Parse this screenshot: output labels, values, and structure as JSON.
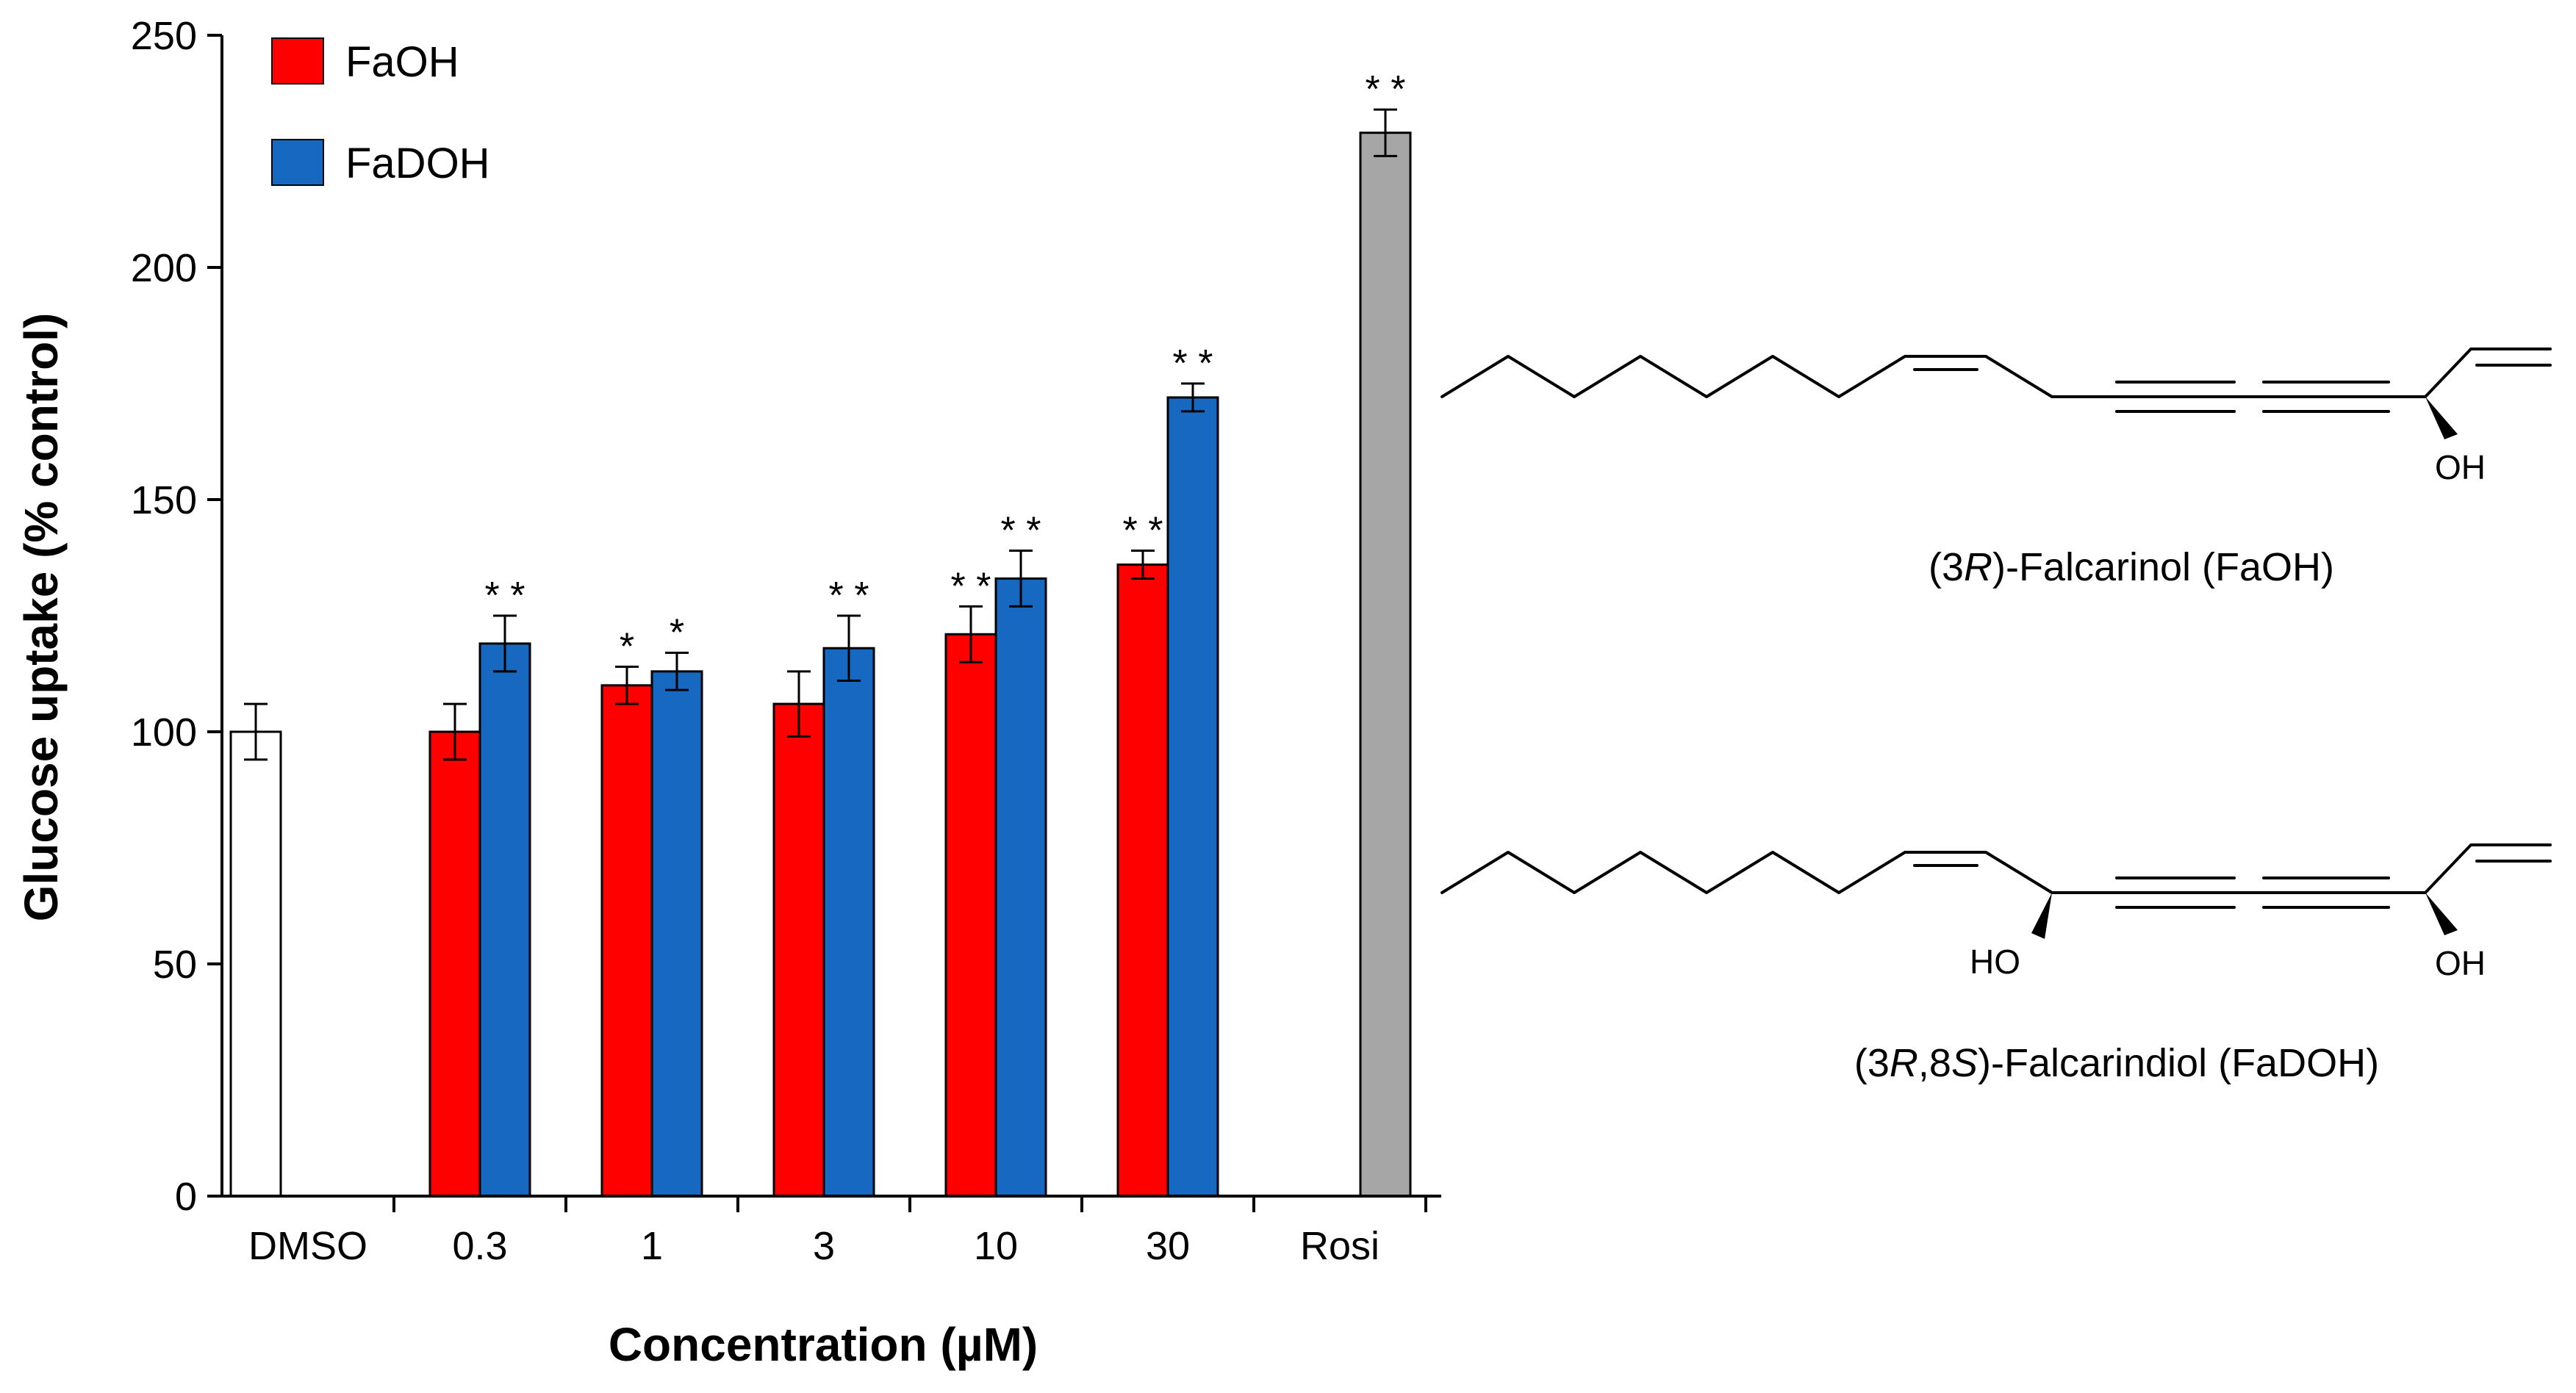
{
  "chart_data": {
    "type": "bar",
    "title": "",
    "xlabel": "Concentration (µM)",
    "ylabel": "Glucose uptake (% control)",
    "ylim": [
      0,
      250
    ],
    "yticks": [
      "0",
      "50",
      "100",
      "150",
      "200",
      "250"
    ],
    "categories": [
      "DMSO",
      "0.3",
      "1",
      "3",
      "10",
      "30",
      "Rosi"
    ],
    "legend_position": "top-left",
    "series": [
      {
        "name": "FaOH",
        "color": "#ff0000",
        "points": [
          {
            "category": "0.3",
            "value": 100,
            "error": 6,
            "sig": ""
          },
          {
            "category": "1",
            "value": 110,
            "error": 4,
            "sig": "*"
          },
          {
            "category": "3",
            "value": 106,
            "error": 7,
            "sig": ""
          },
          {
            "category": "10",
            "value": 121,
            "error": 6,
            "sig": "**"
          },
          {
            "category": "30",
            "value": 136,
            "error": 3,
            "sig": "**"
          }
        ]
      },
      {
        "name": "FaDOH",
        "color": "#1668c1",
        "points": [
          {
            "category": "0.3",
            "value": 119,
            "error": 6,
            "sig": "**"
          },
          {
            "category": "1",
            "value": 113,
            "error": 4,
            "sig": "*"
          },
          {
            "category": "3",
            "value": 118,
            "error": 7,
            "sig": "**"
          },
          {
            "category": "10",
            "value": 133,
            "error": 6,
            "sig": "**"
          },
          {
            "category": "30",
            "value": 172,
            "error": 3,
            "sig": "**"
          }
        ]
      }
    ],
    "controls": [
      {
        "category": "DMSO",
        "value": 100,
        "error": 6,
        "sig": "",
        "color": "#ffffff"
      },
      {
        "category": "Rosi",
        "value": 229,
        "error": 5,
        "sig": "**",
        "color": "#a6a6a6"
      }
    ]
  },
  "structures": [
    {
      "name_pre": "(3",
      "name_it1": "R",
      "name_mid": "",
      "name_it2": "",
      "name_post": ")-Falcarinol (FaOH)",
      "oh_label": "OH"
    },
    {
      "name_pre": "(3",
      "name_it1": "R",
      "name_mid": ",8",
      "name_it2": "S",
      "name_post": ")-Falcarindiol (FaDOH)",
      "oh_label": "OH",
      "ho_label": "HO"
    }
  ]
}
